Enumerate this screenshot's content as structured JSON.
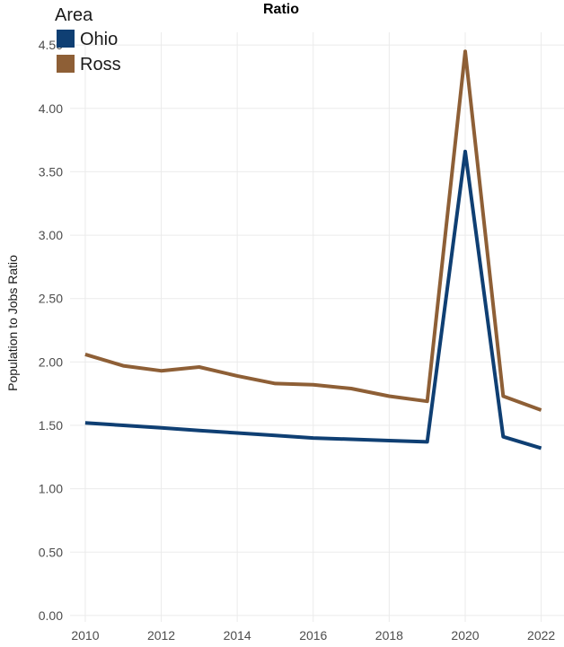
{
  "chart_data": {
    "type": "line",
    "title": "Ratio",
    "xlabel": "",
    "ylabel": "Population to Jobs Ratio",
    "x": [
      2010,
      2011,
      2012,
      2013,
      2014,
      2015,
      2016,
      2017,
      2018,
      2019,
      2020,
      2021,
      2022
    ],
    "x_ticks": [
      "2010",
      "2012",
      "2014",
      "2016",
      "2018",
      "2020",
      "2022"
    ],
    "y_ticks": [
      "0.00",
      "0.50",
      "1.00",
      "1.50",
      "2.00",
      "2.50",
      "3.00",
      "3.50",
      "4.00",
      "4.50"
    ],
    "xlim": [
      2009.6,
      2022.6
    ],
    "ylim": [
      -0.05,
      4.6
    ],
    "grid": true,
    "legend": {
      "title": "Area",
      "position": "top-left"
    },
    "series": [
      {
        "name": "Ohio",
        "color": "#0f3f73",
        "values": [
          1.52,
          1.5,
          1.48,
          1.46,
          1.44,
          1.42,
          1.4,
          1.39,
          1.38,
          1.37,
          3.66,
          1.41,
          1.32
        ]
      },
      {
        "name": "Ross",
        "color": "#8e5f36",
        "values": [
          2.06,
          1.97,
          1.93,
          1.96,
          1.89,
          1.83,
          1.82,
          1.79,
          1.73,
          1.69,
          4.45,
          1.73,
          1.62
        ]
      }
    ]
  }
}
